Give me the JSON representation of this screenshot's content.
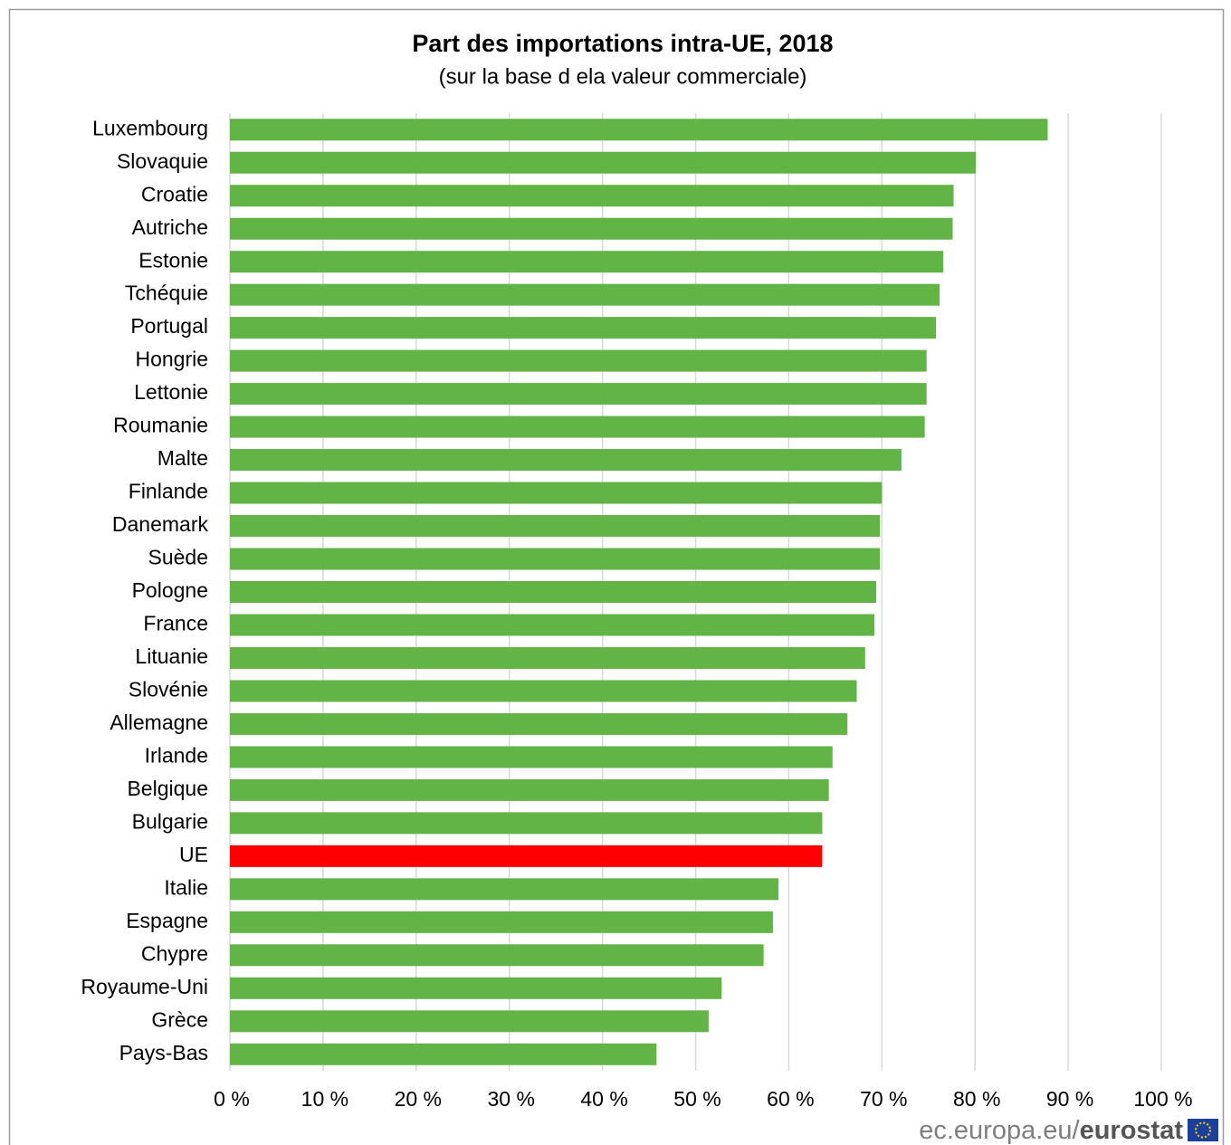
{
  "chart_data": {
    "type": "bar",
    "orientation": "horizontal",
    "title": "Part des importations intra-UE, 2018",
    "subtitle": "(sur la base d ela valeur commerciale)",
    "categories": [
      "Luxembourg",
      "Slovaquie",
      "Croatie",
      "Autriche",
      "Estonie",
      "Tchéquie",
      "Portugal",
      "Hongrie",
      "Lettonie",
      "Roumanie",
      "Malte",
      "Finlande",
      "Danemark",
      "Suède",
      "Pologne",
      "France",
      "Lituanie",
      "Slovénie",
      "Allemagne",
      "Irlande",
      "Belgique",
      "Bulgarie",
      "UE",
      "Italie",
      "Espagne",
      "Chypre",
      "Royaume-Uni",
      "Grèce",
      "Pays-Bas"
    ],
    "values": [
      87.8,
      80.1,
      77.7,
      77.6,
      76.6,
      76.2,
      75.8,
      74.8,
      74.8,
      74.6,
      72.1,
      70.0,
      69.8,
      69.8,
      69.4,
      69.2,
      68.2,
      67.3,
      66.3,
      64.7,
      64.3,
      63.6,
      63.6,
      58.9,
      58.3,
      57.3,
      52.8,
      51.4,
      45.8
    ],
    "colors": [
      "#62b446",
      "#62b446",
      "#62b446",
      "#62b446",
      "#62b446",
      "#62b446",
      "#62b446",
      "#62b446",
      "#62b446",
      "#62b446",
      "#62b446",
      "#62b446",
      "#62b446",
      "#62b446",
      "#62b446",
      "#62b446",
      "#62b446",
      "#62b446",
      "#62b446",
      "#62b446",
      "#62b446",
      "#62b446",
      "#ff0000",
      "#62b446",
      "#62b446",
      "#62b446",
      "#62b446",
      "#62b446",
      "#62b446"
    ],
    "xlim": [
      0,
      100
    ],
    "xticks": [
      {
        "value": 0,
        "label": "0 %"
      },
      {
        "value": 10,
        "label": "10 %"
      },
      {
        "value": 20,
        "label": "20 %"
      },
      {
        "value": 30,
        "label": "30 %"
      },
      {
        "value": 40,
        "label": "40 %"
      },
      {
        "value": 50,
        "label": "50 %"
      },
      {
        "value": 60,
        "label": "60 %"
      },
      {
        "value": 70,
        "label": "70 %"
      },
      {
        "value": 80,
        "label": "80 %"
      },
      {
        "value": 90,
        "label": "90 %"
      },
      {
        "value": 100,
        "label": "100 %"
      }
    ],
    "grid": true,
    "source": "ec.europa.eu/",
    "brand": "eurostat"
  }
}
